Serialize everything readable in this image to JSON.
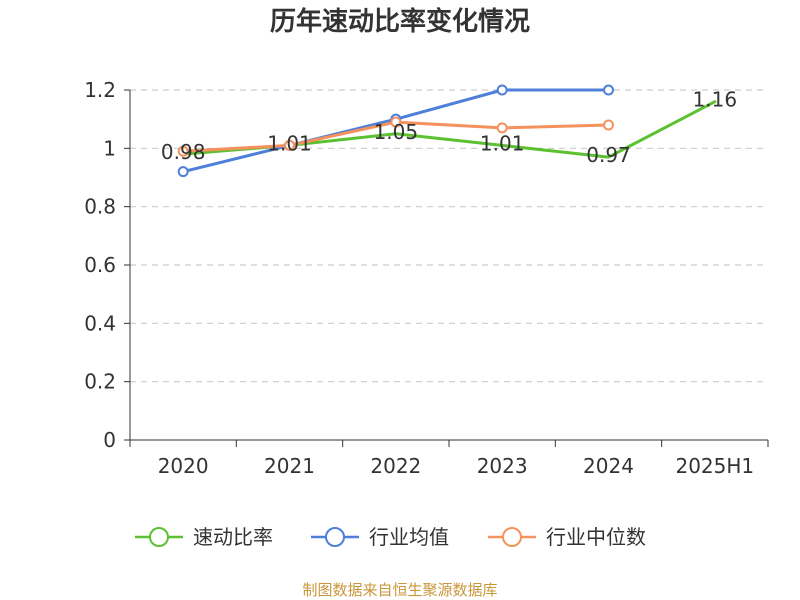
{
  "chart_data": {
    "type": "line",
    "title": "历年速动比率变化情况",
    "categories": [
      "2020",
      "2021",
      "2022",
      "2023",
      "2024",
      "2025H1"
    ],
    "ylim": [
      0,
      1.2
    ],
    "yticks": [
      0,
      0.2,
      0.4,
      0.6,
      0.8,
      1,
      1.2
    ],
    "ytick_labels": [
      "0",
      "0.2",
      "0.4",
      "0.6",
      "0.8",
      "1",
      "1.2"
    ],
    "grid": true,
    "legend_position": "bottom",
    "series": [
      {
        "name": "速动比率",
        "color": "#5cc130",
        "markers": false,
        "values": [
          0.98,
          1.01,
          1.05,
          1.01,
          0.97,
          1.16
        ],
        "data_labels": [
          "0.98",
          "1.01",
          "1.05",
          "1.01",
          "0.97",
          "1.16"
        ]
      },
      {
        "name": "行业均值",
        "color": "#4e7fd9",
        "markers": true,
        "values": [
          0.92,
          1.01,
          1.1,
          1.2,
          1.2,
          null
        ]
      },
      {
        "name": "行业中位数",
        "color": "#f4915c",
        "markers": true,
        "values": [
          0.99,
          1.01,
          1.09,
          1.07,
          1.08,
          null
        ]
      }
    ]
  },
  "source_note": "制图数据来自恒生聚源数据库",
  "colors": {
    "text": "#333333",
    "axis": "#333333",
    "grid": "#cccccc",
    "source_note": "#c9963a"
  }
}
